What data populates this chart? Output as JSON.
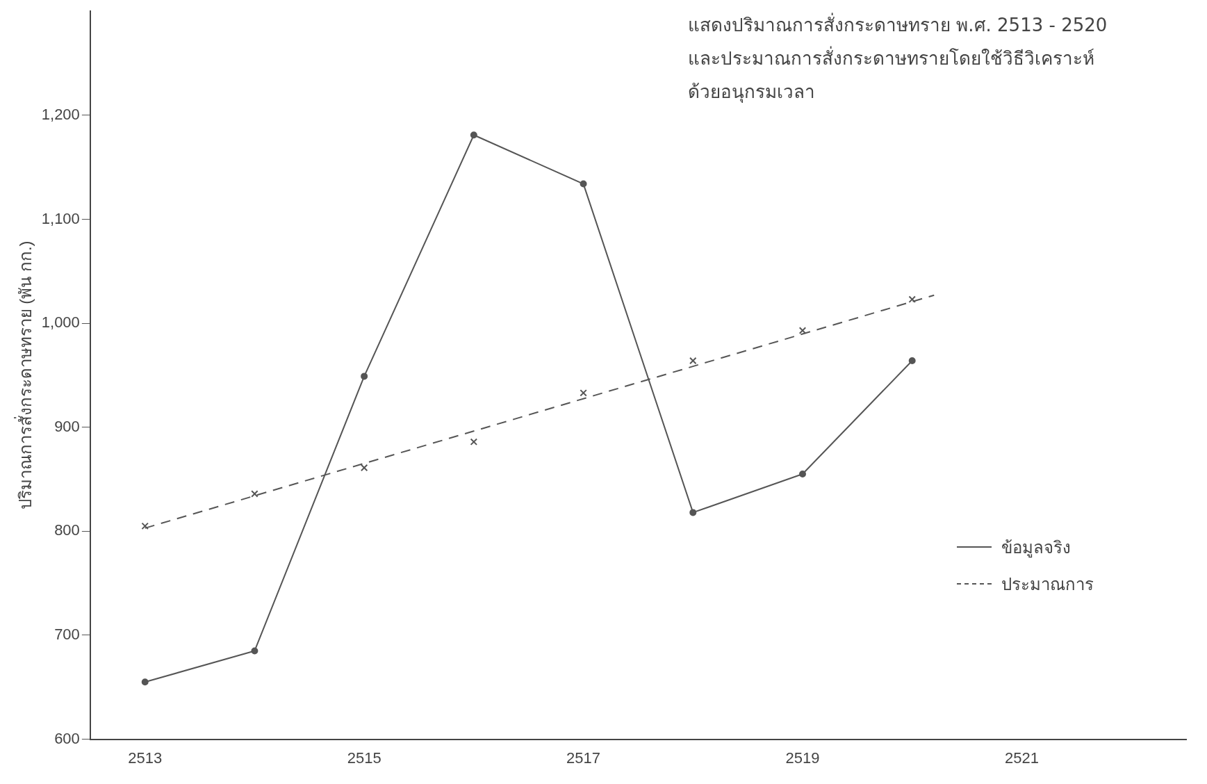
{
  "chart_data": {
    "type": "line",
    "title": [
      "แสดงปริมาณการสั่งกระดาษทราย พ.ศ. 2513 - 2520",
      "และประมาณการสั่งกระดาษทรายโดยใช้วิธีวิเคราะห์",
      "ด้วยอนุกรมเวลา"
    ],
    "ylabel": "ปริมาณการสั่งกระดาษทราย (พัน กก.)",
    "x": [
      2513,
      2514,
      2515,
      2516,
      2517,
      2518,
      2519,
      2520
    ],
    "series": [
      {
        "name": "ข้อมูลจริง",
        "color": "#555555",
        "marker": "circle",
        "line_style": "solid",
        "values": [
          655,
          685,
          949,
          1181,
          1134,
          818,
          855,
          964
        ]
      },
      {
        "name": "ประมาณการ",
        "color": "#555555",
        "marker": "none",
        "line_style": "dashed",
        "x": [
          2513,
          2520.2
        ],
        "values": [
          803,
          1027
        ]
      },
      {
        "type": "scatter",
        "color": "#555555",
        "marker": "cross",
        "values": [
          805,
          836,
          861,
          886,
          933,
          964,
          993,
          1023
        ]
      }
    ],
    "xlim": [
      2512.5,
      2522.5
    ],
    "xticks": [
      2513,
      2515,
      2517,
      2519,
      2521
    ],
    "ylim": [
      600,
      1300
    ],
    "yticks": [
      600,
      700,
      800,
      900,
      {
        "value": 1000,
        "label": "1,000"
      },
      {
        "value": 1100,
        "label": "1,100"
      },
      {
        "value": 1200,
        "label": "1,200"
      }
    ],
    "grid": false,
    "legend": "bottom right"
  }
}
